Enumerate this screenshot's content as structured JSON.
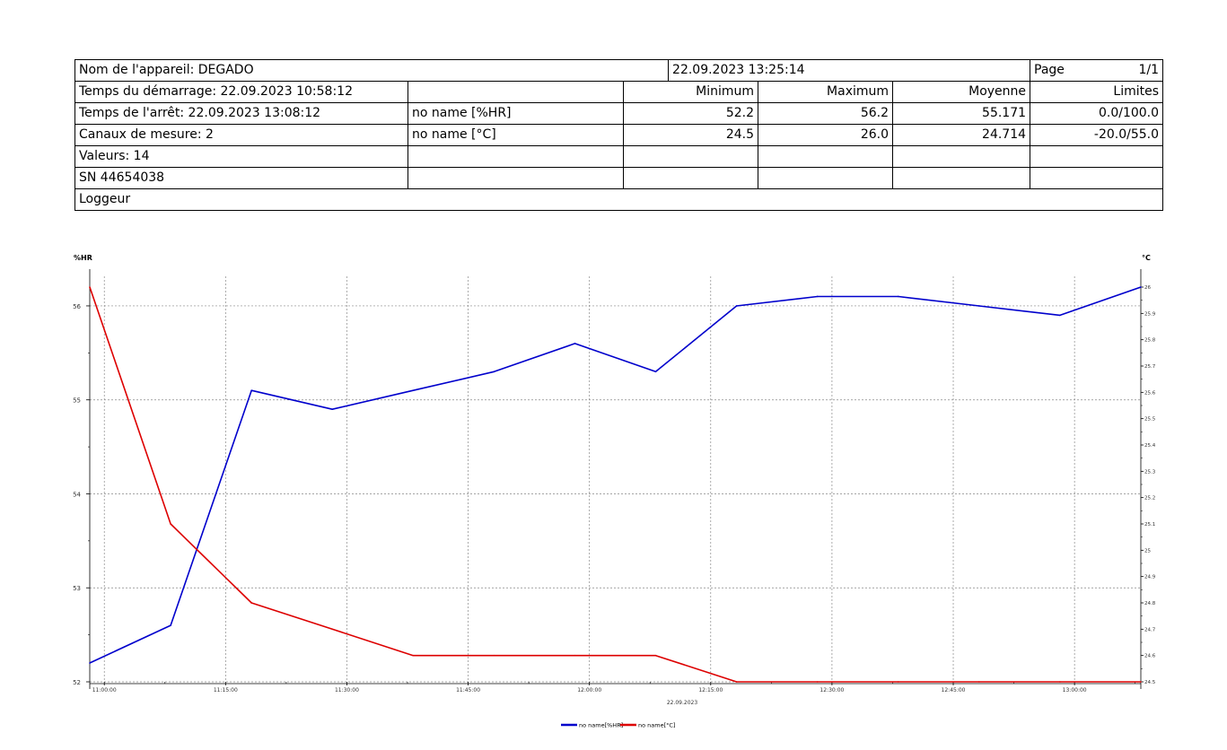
{
  "header": {
    "device_label": "Nom de l'appareil: DEGADO",
    "printed_at": "22.09.2023 13:25:14",
    "page_label": "Page",
    "page_value": "1/1",
    "start_label": "Temps du démarrage: 22.09.2023 10:58:12",
    "stop_label": "Temps de l'arrêt: 22.09.2023 13:08:12",
    "channels_label": "Canaux de mesure: 2",
    "values_label": "Valeurs: 14",
    "serial_label": "SN 44654038",
    "logger_label": "Loggeur",
    "col_min": "Minimum",
    "col_max": "Maximum",
    "col_avg": "Moyenne",
    "col_limits": "Limites"
  },
  "channels": [
    {
      "name": "no name [%HR]",
      "min": "52.2",
      "max": "56.2",
      "avg": "55.171",
      "limits": "0.0/100.0"
    },
    {
      "name": "no name [°C]",
      "min": "24.5",
      "max": "26.0",
      "avg": "24.714",
      "limits": "-20.0/55.0"
    }
  ],
  "chart_data": {
    "type": "line",
    "left_axis_label": "%HR",
    "right_axis_label": "°C",
    "date_label": "22.09.2023",
    "x_tick_labels": [
      "11:00:00",
      "11:15:00",
      "11:30:00",
      "11:45:00",
      "12:00:00",
      "12:15:00",
      "12:30:00",
      "12:45:00",
      "13:00:00"
    ],
    "x_ticks_minutes": [
      660,
      675,
      690,
      705,
      720,
      735,
      750,
      765,
      780
    ],
    "xlim_minutes": [
      658.2,
      788.2
    ],
    "x_times": [
      "10:58:12",
      "11:08:12",
      "11:18:12",
      "11:28:12",
      "11:38:12",
      "11:48:12",
      "11:58:12",
      "12:08:12",
      "12:18:12",
      "12:28:12",
      "12:38:12",
      "12:48:12",
      "12:58:12",
      "13:08:12"
    ],
    "x_minutes": [
      658.2,
      668.2,
      678.2,
      688.2,
      698.2,
      708.2,
      718.2,
      728.2,
      738.2,
      748.2,
      758.2,
      768.2,
      778.2,
      788.2
    ],
    "y_left": {
      "min": 52,
      "max": 56.2,
      "ticks": [
        52,
        53,
        54,
        55,
        56
      ]
    },
    "y_right": {
      "min": 24.5,
      "max": 26.0,
      "ticks": [
        "24.5",
        "24.6",
        "24.7",
        "24.8",
        "24.9",
        "25",
        "25.1",
        "25.2",
        "25.3",
        "25.4",
        "25.5",
        "25.6",
        "25.7",
        "25.8",
        "25.9",
        "26"
      ]
    },
    "grid": true,
    "legend_placement": "bottom-center",
    "series": [
      {
        "name": "no name[%HR]",
        "axis": "left",
        "color": "#0000cc",
        "values": [
          52.2,
          52.6,
          55.1,
          54.9,
          55.1,
          55.3,
          55.6,
          55.3,
          56.0,
          56.1,
          56.1,
          56.0,
          55.9,
          56.2
        ]
      },
      {
        "name": "no name[°C]",
        "axis": "right",
        "color": "#dd0000",
        "values": [
          26.0,
          25.1,
          24.8,
          24.7,
          24.6,
          24.6,
          24.6,
          24.6,
          24.5,
          24.5,
          24.5,
          24.5,
          24.5,
          24.5
        ]
      }
    ]
  }
}
